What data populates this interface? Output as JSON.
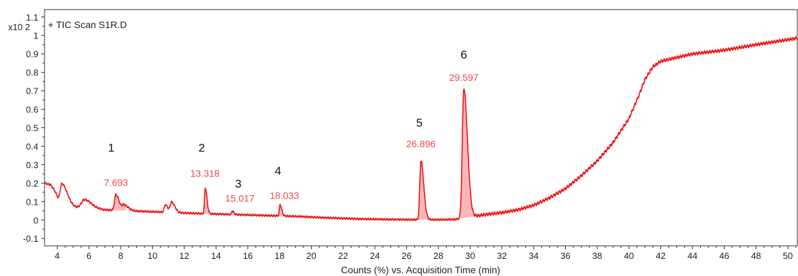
{
  "chart_data": {
    "type": "line",
    "legend": "+ TIC Scan S1R.D",
    "legend_position": "top-left",
    "y_multiplier": "x10 2",
    "xlabel": "Counts (%) vs. Acquisition Time (min)",
    "ylabel": "",
    "xlim": [
      3.2,
      50.6
    ],
    "ylim": [
      -0.14,
      1.14
    ],
    "x_ticks": [
      4,
      6,
      8,
      10,
      12,
      14,
      16,
      18,
      20,
      22,
      24,
      26,
      28,
      30,
      32,
      34,
      36,
      38,
      40,
      42,
      44,
      46,
      48,
      50
    ],
    "y_ticks": [
      -0.1,
      0,
      0.1,
      0.2,
      0.3,
      0.4,
      0.5,
      0.6,
      0.7,
      0.8,
      0.9,
      1,
      1.1
    ],
    "line_color": "#ee1111",
    "fill_color": "#f7a0a0",
    "baseline": [
      [
        3.2,
        0.2
      ],
      [
        3.6,
        0.19
      ],
      [
        3.9,
        0.15
      ],
      [
        4.1,
        0.1
      ],
      [
        4.7,
        0.09
      ],
      [
        5.2,
        0.07
      ],
      [
        6.0,
        0.07
      ],
      [
        7.0,
        0.055
      ],
      [
        8.5,
        0.05
      ],
      [
        10.0,
        0.045
      ],
      [
        11.5,
        0.04
      ],
      [
        13.0,
        0.035
      ],
      [
        15.0,
        0.03
      ],
      [
        17.0,
        0.025
      ],
      [
        19.0,
        0.02
      ],
      [
        21.0,
        0.012
      ],
      [
        23.0,
        0.006
      ],
      [
        25.0,
        0.003
      ],
      [
        26.5,
        0.002
      ],
      [
        28.0,
        0.002
      ],
      [
        29.0,
        0.003
      ],
      [
        31.0,
        0.03
      ],
      [
        32.0,
        0.04
      ],
      [
        33.0,
        0.055
      ],
      [
        34.0,
        0.08
      ],
      [
        35.0,
        0.12
      ],
      [
        36.0,
        0.17
      ],
      [
        37.0,
        0.24
      ],
      [
        38.0,
        0.32
      ],
      [
        39.0,
        0.42
      ],
      [
        40.0,
        0.55
      ],
      [
        40.6,
        0.67
      ],
      [
        41.0,
        0.76
      ],
      [
        41.5,
        0.83
      ],
      [
        42.0,
        0.86
      ],
      [
        43.0,
        0.88
      ],
      [
        44.0,
        0.9
      ],
      [
        46.0,
        0.92
      ],
      [
        48.0,
        0.95
      ],
      [
        50.6,
        0.985
      ]
    ],
    "peaks": [
      {
        "label": "",
        "rt": 4.3,
        "height": 0.1,
        "width": 0.22
      },
      {
        "label": "",
        "rt": 5.7,
        "height": 0.04,
        "width": 0.3
      },
      {
        "label": "1",
        "rt_label": "7.693",
        "rt": 7.69,
        "height": 0.085,
        "width": 0.15
      },
      {
        "label": "",
        "rt": 8.2,
        "height": 0.03,
        "width": 0.2
      },
      {
        "label": "",
        "rt": 10.8,
        "height": 0.04,
        "width": 0.12
      },
      {
        "label": "",
        "rt": 11.2,
        "height": 0.055,
        "width": 0.15
      },
      {
        "label": "2",
        "rt_label": "13.318",
        "rt": 13.32,
        "height": 0.14,
        "width": 0.08
      },
      {
        "label": "3",
        "rt_label": "15.017",
        "rt": 15.02,
        "height": 0.02,
        "width": 0.07
      },
      {
        "label": "4",
        "rt_label": "18.033",
        "rt": 18.03,
        "height": 0.06,
        "width": 0.08
      },
      {
        "label": "5",
        "rt_label": "26.896",
        "rt": 26.9,
        "height": 0.32,
        "width": 0.13
      },
      {
        "label": "6",
        "rt_label": "29.597",
        "rt": 29.6,
        "height": 0.7,
        "width": 0.17
      }
    ]
  }
}
